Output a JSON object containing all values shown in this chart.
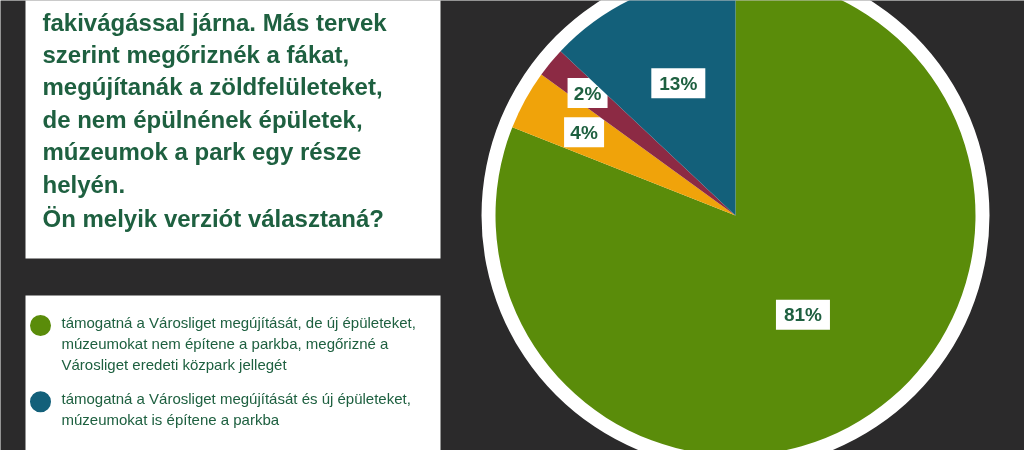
{
  "chart_data": {
    "type": "pie",
    "annotations": [
      "fakivágással járna. Más tervek szerint megőriznék a fákat, megújítanák a zöldfelületeket, de nem épülnének épületek, múzeumok a park egy része helyén.",
      "Ön melyik verziót választaná?"
    ],
    "categories": [
      "támogatná a Városliget megújítását, de új épületeket, múzeumokat nem építene a parkba, megőrizné a Városliget eredeti közpark jellegét",
      null,
      null,
      "támogatná a Városliget megújítását és új épületeket, múzeumokat is építene a parkba"
    ],
    "values": [
      81,
      4,
      2,
      13
    ],
    "colors": [
      "#5a8c0a",
      "#f0a30a",
      "#8c2a44",
      "#13607a"
    ],
    "value_labels": [
      "81%",
      "4%",
      "2%",
      "13%"
    ],
    "legend": "left"
  }
}
